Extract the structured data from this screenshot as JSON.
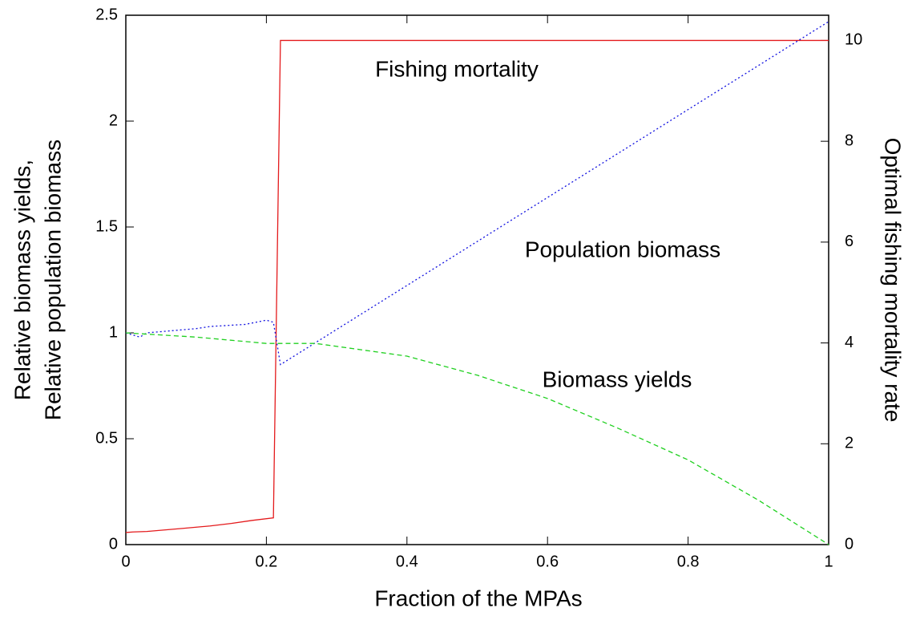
{
  "chart_data": {
    "type": "line",
    "xlabel": "Fraction of the MPAs",
    "ylabel": [
      "Relative biomass yields,",
      "Relative population biomass"
    ],
    "y2label": "Optimal fishing mortality rate",
    "xlim": [
      0,
      1
    ],
    "xticks": [
      0,
      0.2,
      0.4,
      0.6,
      0.8,
      1
    ],
    "ylim": [
      0,
      2.5
    ],
    "yticks": [
      0,
      0.5,
      1,
      1.5,
      2,
      2.5
    ],
    "y2lim": [
      0,
      10.5
    ],
    "y2ticks": [
      0,
      2,
      4,
      6,
      8,
      10
    ],
    "annotations": [
      "Fishing mortality",
      "Population biomass",
      "Biomass yields"
    ],
    "series": [
      {
        "name": "Fishing mortality",
        "color": "#e41a1c",
        "dash": "solid",
        "axis": "y2",
        "x": [
          0,
          0.01,
          0.03,
          0.08,
          0.12,
          0.15,
          0.18,
          0.21,
          0.22,
          1
        ],
        "values": [
          0.24,
          0.25,
          0.26,
          0.32,
          0.37,
          0.42,
          0.48,
          0.53,
          10,
          10
        ]
      },
      {
        "name": "Population biomass",
        "color": "#1010e0",
        "dash": "dotted",
        "x": [
          0,
          0.02,
          0.03,
          0.1,
          0.12,
          0.17,
          0.2,
          0.21,
          0.22,
          1
        ],
        "values": [
          1.0,
          0.98,
          1.0,
          1.02,
          1.03,
          1.04,
          1.06,
          1.05,
          0.85,
          2.47
        ]
      },
      {
        "name": "Biomass yields",
        "color": "#20d020",
        "dash": "dashed",
        "x": [
          0,
          0.1,
          0.2,
          0.27,
          0.4,
          0.5,
          0.6,
          0.7,
          0.8,
          0.9,
          1
        ],
        "values": [
          1.0,
          0.98,
          0.95,
          0.95,
          0.89,
          0.8,
          0.69,
          0.55,
          0.4,
          0.21,
          0
        ]
      }
    ]
  }
}
